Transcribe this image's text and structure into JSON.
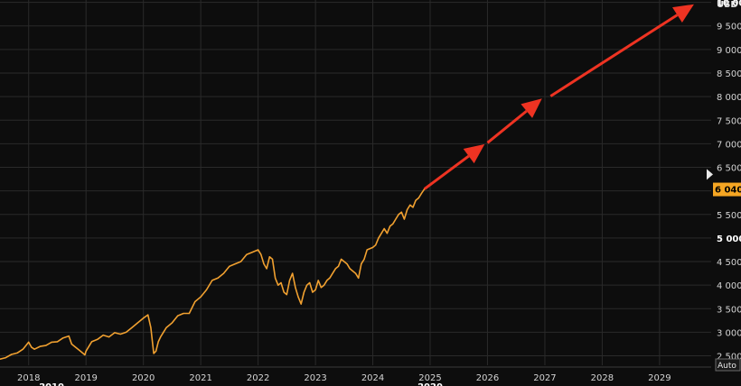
{
  "chart_data": {
    "type": "line",
    "unit_label": "USD",
    "ylim": [
      2300,
      10050
    ],
    "xlim": [
      2017.5,
      2029.9
    ],
    "grid": true,
    "y_ticks": [
      {
        "value": 2500,
        "label": "2 500"
      },
      {
        "value": 3000,
        "label": "3 000"
      },
      {
        "value": 3500,
        "label": "3 500"
      },
      {
        "value": 4000,
        "label": "4 000"
      },
      {
        "value": 4500,
        "label": "4 500"
      },
      {
        "value": 5000,
        "label": "5 000",
        "bold": true
      },
      {
        "value": 5500,
        "label": "5 500"
      },
      {
        "value": 6000,
        "label": "6 000"
      },
      {
        "value": 6500,
        "label": "6 500"
      },
      {
        "value": 7000,
        "label": "7 000"
      },
      {
        "value": 7500,
        "label": "7 500"
      },
      {
        "value": 8000,
        "label": "8 000"
      },
      {
        "value": 8500,
        "label": "8 500"
      },
      {
        "value": 9000,
        "label": "9 000"
      },
      {
        "value": 9500,
        "label": "9 500"
      },
      {
        "value": 10000,
        "label": "10 000",
        "bold": true
      }
    ],
    "x_ticks": [
      {
        "value": 2018,
        "label": "2018"
      },
      {
        "value": 2019,
        "label": "2019"
      },
      {
        "value": 2020,
        "label": "2020"
      },
      {
        "value": 2021,
        "label": "2021"
      },
      {
        "value": 2022,
        "label": "2022"
      },
      {
        "value": 2023,
        "label": "2023"
      },
      {
        "value": 2024,
        "label": "2024"
      },
      {
        "value": 2025,
        "label": "2025"
      },
      {
        "value": 2026,
        "label": "2026"
      },
      {
        "value": 2027,
        "label": "2027"
      },
      {
        "value": 2028,
        "label": "2028"
      },
      {
        "value": 2029,
        "label": "2029"
      }
    ],
    "decade_labels": [
      {
        "value": 2018.4,
        "label": "2010"
      },
      {
        "value": 2025.0,
        "label": "2020"
      }
    ],
    "series": [
      {
        "color": "#f0a030",
        "x": [
          2017.5,
          2017.6,
          2017.7,
          2017.8,
          2017.9,
          2018.0,
          2018.05,
          2018.1,
          2018.2,
          2018.3,
          2018.4,
          2018.5,
          2018.6,
          2018.7,
          2018.75,
          2018.8,
          2018.9,
          2018.98,
          2019.0,
          2019.1,
          2019.2,
          2019.3,
          2019.4,
          2019.5,
          2019.6,
          2019.7,
          2019.8,
          2019.9,
          2020.0,
          2020.08,
          2020.13,
          2020.18,
          2020.22,
          2020.26,
          2020.3,
          2020.4,
          2020.5,
          2020.6,
          2020.7,
          2020.8,
          2020.9,
          2021.0,
          2021.1,
          2021.2,
          2021.3,
          2021.4,
          2021.5,
          2021.6,
          2021.7,
          2021.8,
          2021.9,
          2022.0,
          2022.05,
          2022.1,
          2022.15,
          2022.2,
          2022.25,
          2022.3,
          2022.35,
          2022.4,
          2022.45,
          2022.5,
          2022.55,
          2022.6,
          2022.65,
          2022.7,
          2022.75,
          2022.8,
          2022.85,
          2022.9,
          2022.95,
          2023.0,
          2023.05,
          2023.1,
          2023.15,
          2023.2,
          2023.25,
          2023.3,
          2023.35,
          2023.4,
          2023.45,
          2023.5,
          2023.55,
          2023.6,
          2023.65,
          2023.7,
          2023.75,
          2023.8,
          2023.85,
          2023.9,
          2024.0,
          2024.05,
          2024.1,
          2024.15,
          2024.2,
          2024.25,
          2024.3,
          2024.35,
          2024.4,
          2024.45,
          2024.5,
          2024.55,
          2024.6,
          2024.65,
          2024.7,
          2024.75,
          2024.8,
          2024.85,
          2024.9
        ],
        "y": [
          2430,
          2460,
          2530,
          2560,
          2640,
          2790,
          2680,
          2640,
          2700,
          2720,
          2790,
          2800,
          2880,
          2920,
          2750,
          2700,
          2600,
          2520,
          2600,
          2800,
          2850,
          2940,
          2900,
          2990,
          2960,
          3000,
          3100,
          3200,
          3300,
          3370,
          3100,
          2550,
          2600,
          2800,
          2900,
          3100,
          3200,
          3350,
          3400,
          3400,
          3650,
          3750,
          3900,
          4100,
          4150,
          4250,
          4400,
          4450,
          4500,
          4650,
          4700,
          4750,
          4650,
          4450,
          4350,
          4600,
          4550,
          4150,
          4000,
          4050,
          3850,
          3800,
          4100,
          4250,
          3950,
          3750,
          3600,
          3850,
          4000,
          4050,
          3850,
          3900,
          4100,
          3950,
          4000,
          4100,
          4150,
          4250,
          4350,
          4400,
          4550,
          4500,
          4450,
          4350,
          4300,
          4250,
          4150,
          4450,
          4550,
          4750,
          4800,
          4850,
          5000,
          5100,
          5200,
          5100,
          5250,
          5300,
          5400,
          5500,
          5550,
          5400,
          5600,
          5700,
          5650,
          5800,
          5850,
          5950,
          6040
        ]
      }
    ],
    "arrows": [
      {
        "from": [
          2024.9,
          6040
        ],
        "to": [
          2025.95,
          6990
        ]
      },
      {
        "from": [
          2026.0,
          7020
        ],
        "to": [
          2026.95,
          7960
        ]
      },
      {
        "from": [
          2027.1,
          8010
        ],
        "to": [
          2029.6,
          9960
        ]
      }
    ],
    "last_value": {
      "value": 6040,
      "label": "6 040,"
    },
    "right_marker_value": 6350,
    "auto_label": "Auto"
  },
  "colors": {
    "background": "#0d0d0d",
    "grid": "#2a2a2a",
    "series": "#f0a030",
    "arrow": "#ee3322",
    "last_value_bg": "#f5a623"
  }
}
